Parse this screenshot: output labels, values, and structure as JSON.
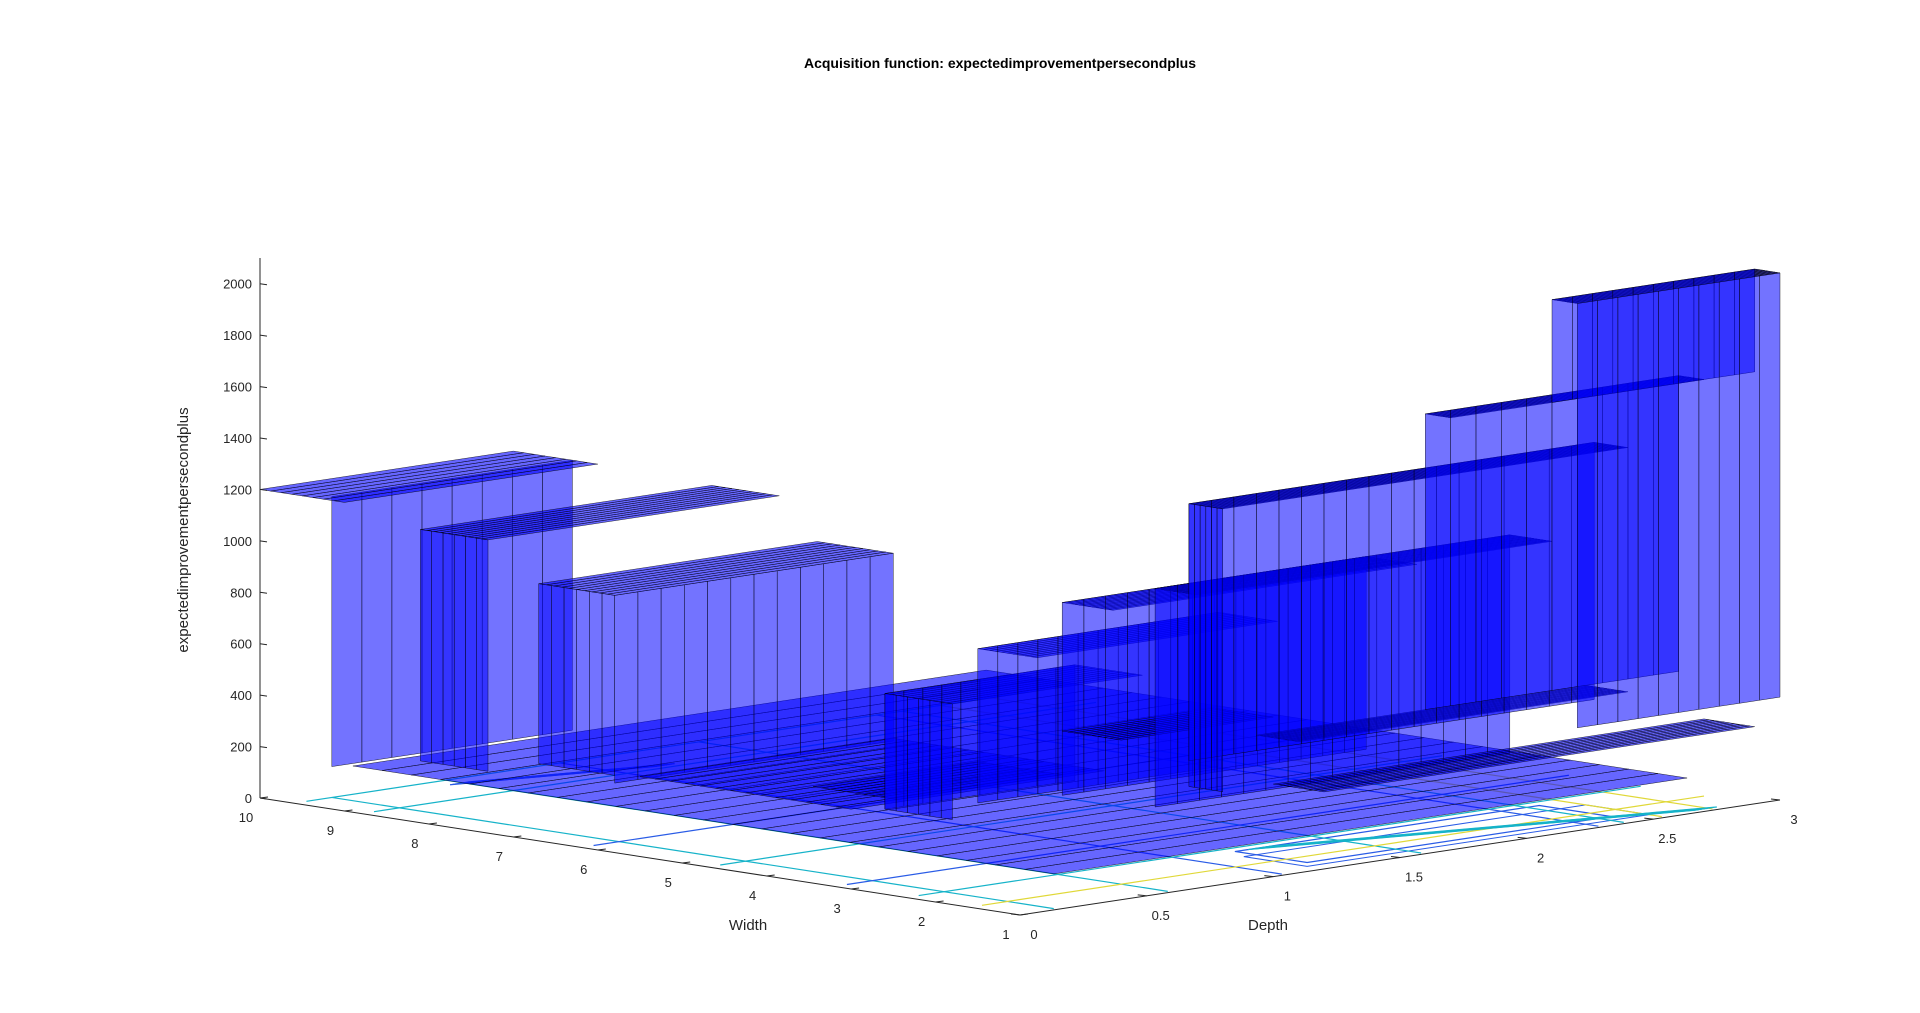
{
  "chart_data": {
    "type": "surface3d",
    "title": "Acquisition function: expectedimprovementpersecondplus",
    "xlabel": "Width",
    "ylabel": "Depth",
    "zlabel": "expectedimprovementpersecondplus",
    "xlim": [
      1,
      10
    ],
    "ylim": [
      0,
      3
    ],
    "zlim": [
      0,
      2100
    ],
    "x_ticks": [
      "1",
      "2",
      "3",
      "4",
      "5",
      "6",
      "7",
      "8",
      "9",
      "10"
    ],
    "y_ticks": [
      "0",
      "0.5",
      "1",
      "1.5",
      "2",
      "2.5",
      "3"
    ],
    "z_ticks": [
      "0",
      "200",
      "400",
      "600",
      "800",
      "1000",
      "1200",
      "1400",
      "1600",
      "1800",
      "2000"
    ],
    "surface_color": "#0000ff",
    "contour_colors": [
      "#2a5ce6",
      "#16b3c9",
      "#e0d838"
    ],
    "surface_ridges": [
      {
        "width": 10,
        "depth_from": 0.0,
        "depth_to": 1.0,
        "value": 1200
      },
      {
        "width": 8.5,
        "depth_from": 0.3,
        "depth_to": 1.4,
        "value": 1050
      },
      {
        "width": 7.2,
        "depth_from": 0.5,
        "depth_to": 1.6,
        "value": 850
      },
      {
        "width": 5.2,
        "depth_from": 0.6,
        "depth_to": 1.2,
        "value": 150
      },
      {
        "width": 3.8,
        "depth_from": 0.6,
        "depth_to": 1.3,
        "value": 600
      },
      {
        "width": 3.0,
        "depth_from": 0.7,
        "depth_to": 1.6,
        "value": 800
      },
      {
        "width": 2.3,
        "depth_from": 0.8,
        "depth_to": 2.0,
        "value": 1000
      },
      {
        "width": 2.0,
        "depth_from": 0.9,
        "depth_to": 2.4,
        "value": 1050
      },
      {
        "width": 1.8,
        "depth_from": 1.0,
        "depth_to": 2.6,
        "value": 1400
      },
      {
        "width": 1.4,
        "depth_from": 1.8,
        "depth_to": 2.8,
        "value": 1650
      },
      {
        "width": 1.0,
        "depth_from": 2.2,
        "depth_to": 3.0,
        "value": 2050
      }
    ]
  }
}
